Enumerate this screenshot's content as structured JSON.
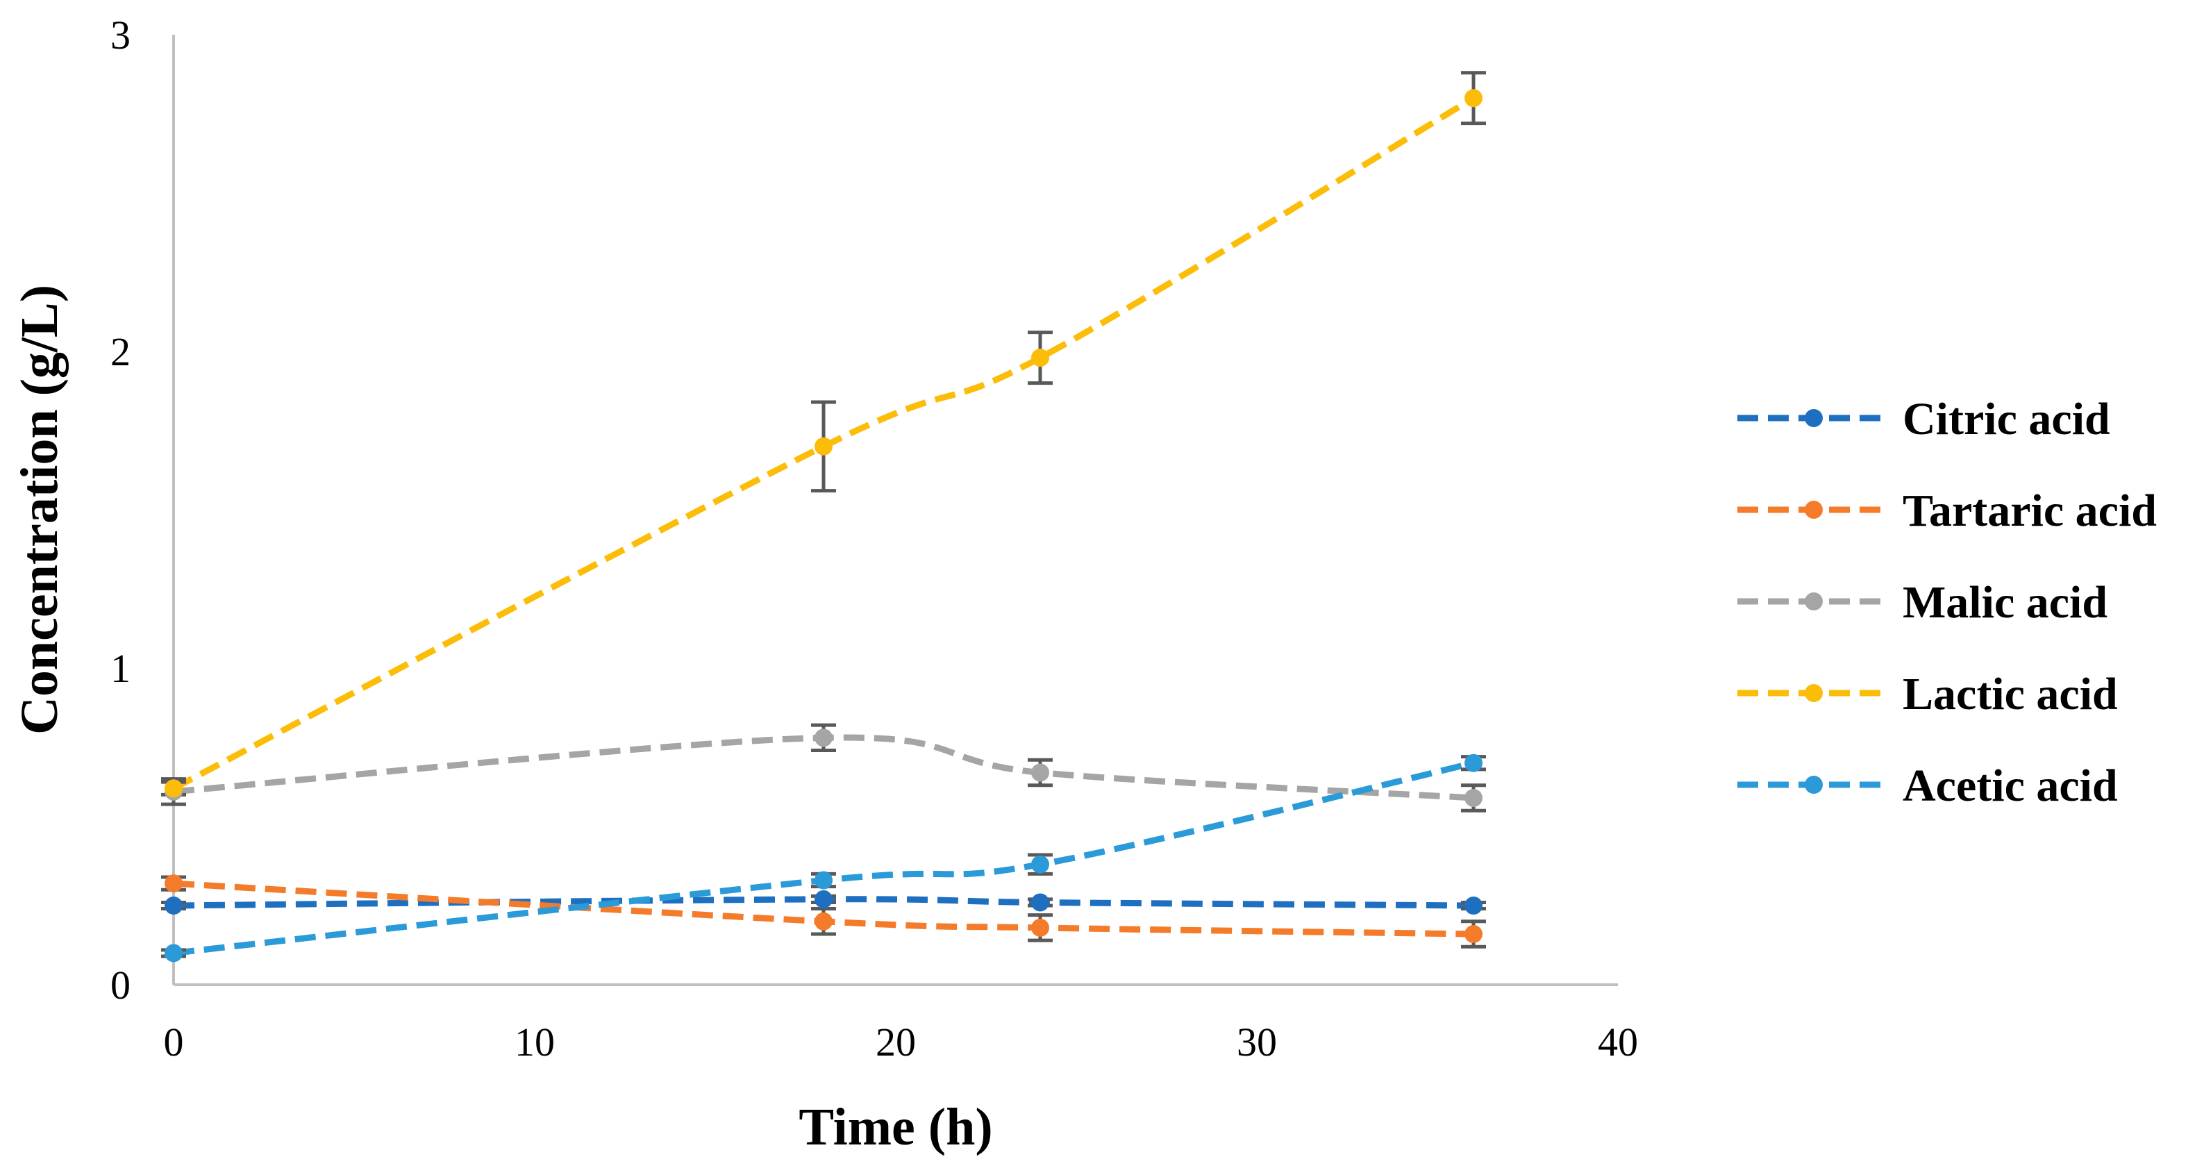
{
  "chart_data": {
    "type": "line",
    "title": "",
    "xlabel": "Time (h)",
    "ylabel": "Concentration (g/L)",
    "xlim": [
      0,
      40
    ],
    "ylim": [
      0,
      3
    ],
    "x_ticks": [
      0,
      10,
      20,
      30,
      40
    ],
    "y_ticks": [
      0,
      1,
      2,
      3
    ],
    "grid": false,
    "line_style": "dashed",
    "smoothed": true,
    "legend_position": "right",
    "error_bar_color": "#595959",
    "axis_color": "#bfbfbf",
    "x": [
      0,
      18,
      24,
      36
    ],
    "series": [
      {
        "name": "Citric acid",
        "color": "#1f6fc1",
        "values": [
          0.25,
          0.27,
          0.26,
          0.25
        ],
        "errors": [
          0.01,
          0.01,
          0.01,
          0.01
        ]
      },
      {
        "name": "Tartaric acid",
        "color": "#f47b2a",
        "values": [
          0.32,
          0.2,
          0.18,
          0.16
        ],
        "errors": [
          0.02,
          0.04,
          0.04,
          0.04
        ]
      },
      {
        "name": "Malic acid",
        "color": "#a5a5a5",
        "values": [
          0.61,
          0.78,
          0.67,
          0.59
        ],
        "errors": [
          0.04,
          0.04,
          0.04,
          0.04
        ]
      },
      {
        "name": "Lactic acid",
        "color": "#fbbd08",
        "values": [
          0.62,
          1.7,
          1.98,
          2.8
        ],
        "errors": [
          0.02,
          0.14,
          0.08,
          0.08
        ]
      },
      {
        "name": "Acetic acid",
        "color": "#2b9ad8",
        "values": [
          0.1,
          0.33,
          0.38,
          0.7
        ],
        "errors": [
          0.01,
          0.02,
          0.03,
          0.02
        ]
      }
    ]
  }
}
